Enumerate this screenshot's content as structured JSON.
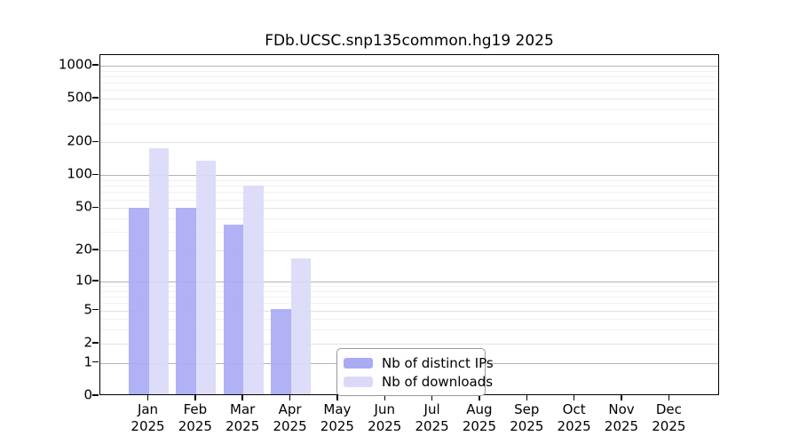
{
  "chart_data": {
    "type": "bar",
    "title": "FDb.UCSC.snp135common.hg19 2025",
    "y_scale": "log10(1+value)",
    "yticks": [
      0,
      1,
      2,
      5,
      10,
      20,
      50,
      100,
      200,
      500,
      1000
    ],
    "ylim": [
      0,
      1225
    ],
    "grid": "horizontal",
    "legend_position": "bottom-center-inside",
    "categories": [
      {
        "month": "Jan",
        "year": "2025"
      },
      {
        "month": "Feb",
        "year": "2025"
      },
      {
        "month": "Mar",
        "year": "2025"
      },
      {
        "month": "Apr",
        "year": "2025"
      },
      {
        "month": "May",
        "year": "2025"
      },
      {
        "month": "Jun",
        "year": "2025"
      },
      {
        "month": "Jul",
        "year": "2025"
      },
      {
        "month": "Aug",
        "year": "2025"
      },
      {
        "month": "Sep",
        "year": "2025"
      },
      {
        "month": "Oct",
        "year": "2025"
      },
      {
        "month": "Nov",
        "year": "2025"
      },
      {
        "month": "Dec",
        "year": "2025"
      }
    ],
    "series": [
      {
        "name": "Nb of distinct IPs",
        "color": "#aaaaf5",
        "values": [
          48,
          48,
          34,
          5,
          null,
          null,
          null,
          null,
          null,
          null,
          null,
          null
        ]
      },
      {
        "name": "Nb of downloads",
        "color": "#dadaf8",
        "values": [
          170,
          130,
          78,
          16,
          null,
          null,
          null,
          null,
          null,
          null,
          null,
          null
        ]
      }
    ]
  }
}
